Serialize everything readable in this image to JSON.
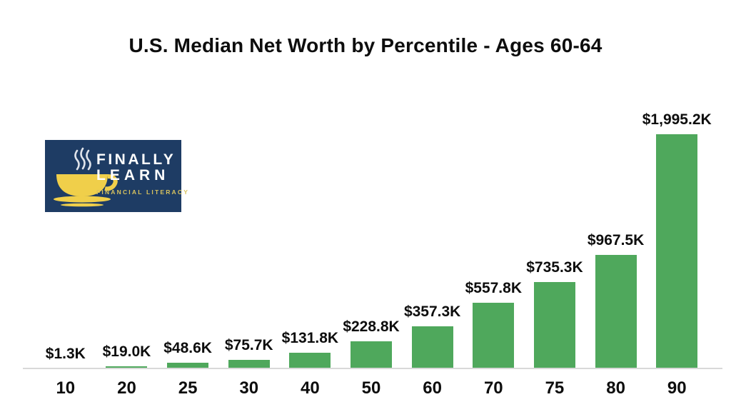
{
  "title": "U.S. Median Net Worth by Percentile - Ages 60-64",
  "logo": {
    "line1": "FINALLY",
    "line2": "LEARN",
    "tagline": "FINANCIAL LITERACY",
    "bg_color": "#1e3c64",
    "cup_color": "#f0cf4a",
    "tagline_color": "#d9c35e",
    "text_color": "#ffffff"
  },
  "chart_data": {
    "type": "bar",
    "title": "U.S. Median Net Worth by Percentile - Ages 60-64",
    "categories": [
      "10",
      "20",
      "25",
      "30",
      "40",
      "50",
      "60",
      "70",
      "75",
      "80",
      "90"
    ],
    "values": [
      1.3,
      19.0,
      48.6,
      75.7,
      131.8,
      228.8,
      357.3,
      557.8,
      735.3,
      967.5,
      1995.2
    ],
    "value_labels": [
      "$1.3K",
      "$19.0K",
      "$48.6K",
      "$75.7K",
      "$131.8K",
      "$228.8K",
      "$357.3K",
      "$557.8K",
      "$735.3K",
      "$967.5K",
      "$1,995.2K"
    ],
    "xlabel": "",
    "ylabel": "",
    "ylim": [
      0,
      2000
    ],
    "grid": false,
    "legend": false,
    "bar_color": "#4fa85c",
    "axis_line_color": "#d9d9d9",
    "label_color": "#0d0d0d"
  }
}
